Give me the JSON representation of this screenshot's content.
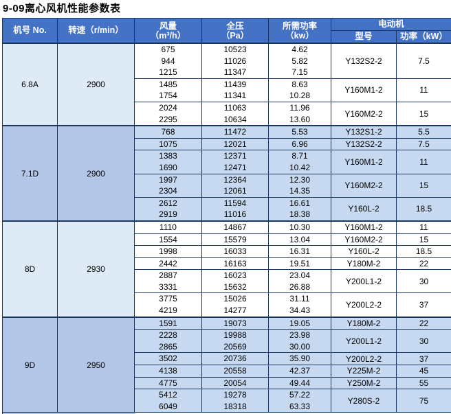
{
  "title": "9-09离心风机性能参数表",
  "colors": {
    "header_bg": "#4472C4",
    "border": "#17375E",
    "light_machine": "#DEEAF6",
    "light_data": "#FFFFFF",
    "blue_machine": "#B4C6E7",
    "blue_data": "#C7D9F1",
    "header_text": "#FFFFFF",
    "text": "#000000"
  },
  "table": {
    "headers": {
      "machine_no": "机号 No.",
      "speed": "转速（r/min）",
      "flow_line1": "风量",
      "flow_line2": "（m³/h）",
      "pressure_line1": "全压",
      "pressure_line2": "（Pa）",
      "power_line1": "所需功率",
      "power_line2": "（kw）",
      "motor": "电动机",
      "motor_model": "型号",
      "motor_power": "功率（kW）"
    },
    "sections": [
      {
        "machine_no": "6.8A",
        "speed": "2900",
        "shade": "light",
        "groups": [
          {
            "rows": [
              [
                "675",
                "10523",
                "4.62"
              ],
              [
                "944",
                "11026",
                "5.82"
              ],
              [
                "1215",
                "11347",
                "7.15"
              ]
            ],
            "motor_model": "Y132S2-2",
            "motor_power": "7.5"
          },
          {
            "rows": [
              [
                "1485",
                "11439",
                "8.63"
              ],
              [
                "1754",
                "11341",
                "10.28"
              ]
            ],
            "motor_model": "Y160M1-2",
            "motor_power": "11"
          },
          {
            "rows": [
              [
                "2024",
                "11063",
                "11.96"
              ],
              [
                "2295",
                "10634",
                "13.60"
              ]
            ],
            "motor_model": "Y160M2-2",
            "motor_power": "15"
          }
        ]
      },
      {
        "machine_no": "7.1D",
        "speed": "2900",
        "shade": "blue",
        "groups": [
          {
            "rows": [
              [
                "768",
                "11472",
                "5.53"
              ]
            ],
            "motor_model": "Y132S1-2",
            "motor_power": "5.5"
          },
          {
            "rows": [
              [
                "1075",
                "12021",
                "6.96"
              ]
            ],
            "motor_model": "Y132S2-2",
            "motor_power": "7.5"
          },
          {
            "rows": [
              [
                "1383",
                "12371",
                "8.71"
              ],
              [
                "1690",
                "12471",
                "10.42"
              ]
            ],
            "motor_model": "Y160M1-2",
            "motor_power": "11"
          },
          {
            "rows": [
              [
                "1997",
                "12364",
                "12.30"
              ],
              [
                "2304",
                "12061",
                "14.35"
              ]
            ],
            "motor_model": "Y160M2-2",
            "motor_power": "15"
          },
          {
            "rows": [
              [
                "2612",
                "11594",
                "16.61"
              ],
              [
                "2919",
                "11016",
                "18.38"
              ]
            ],
            "motor_model": "Y160L-2",
            "motor_power": "18.5"
          }
        ]
      },
      {
        "machine_no": "8D",
        "speed": "2930",
        "shade": "light",
        "groups": [
          {
            "rows": [
              [
                "1110",
                "14867",
                "10.30"
              ]
            ],
            "motor_model": "Y160M1-2",
            "motor_power": "11"
          },
          {
            "rows": [
              [
                "1554",
                "15579",
                "13.04"
              ]
            ],
            "motor_model": "Y160M2-2",
            "motor_power": "15"
          },
          {
            "rows": [
              [
                "1998",
                "16033",
                "16.31"
              ]
            ],
            "motor_model": "Y160L-2",
            "motor_power": "18.5"
          },
          {
            "rows": [
              [
                "2442",
                "16163",
                "19.51"
              ]
            ],
            "motor_model": "Y180M-2",
            "motor_power": "22"
          },
          {
            "rows": [
              [
                "2887",
                "16023",
                "23.04"
              ],
              [
                "3331",
                "15632",
                "26.88"
              ]
            ],
            "motor_model": "Y200L1-2",
            "motor_power": "30"
          },
          {
            "rows": [
              [
                "3775",
                "15026",
                "31.11"
              ],
              [
                "4219",
                "14277",
                "34.43"
              ]
            ],
            "motor_model": "Y200L2-2",
            "motor_power": "37"
          }
        ]
      },
      {
        "machine_no": "9D",
        "speed": "2950",
        "shade": "blue",
        "groups": [
          {
            "rows": [
              [
                "1591",
                "19073",
                "19.05"
              ]
            ],
            "motor_model": "Y180M-2",
            "motor_power": "22"
          },
          {
            "rows": [
              [
                "2228",
                "19988",
                "23.98"
              ],
              [
                "2865",
                "20569",
                "30.00"
              ]
            ],
            "motor_model": "Y200L1-2",
            "motor_power": "30"
          },
          {
            "rows": [
              [
                "3502",
                "20736",
                "35.90"
              ]
            ],
            "motor_model": "Y200L2-2",
            "motor_power": "37"
          },
          {
            "rows": [
              [
                "4138",
                "20558",
                "42.37"
              ]
            ],
            "motor_model": "Y225M-2",
            "motor_power": "45"
          },
          {
            "rows": [
              [
                "4775",
                "20054",
                "49.44"
              ]
            ],
            "motor_model": "Y250M-2",
            "motor_power": "55"
          },
          {
            "rows": [
              [
                "5412",
                "19278",
                "57.22"
              ],
              [
                "6049",
                "18318",
                "63.33"
              ]
            ],
            "motor_model": "Y280S-2",
            "motor_power": "75"
          }
        ]
      }
    ]
  }
}
